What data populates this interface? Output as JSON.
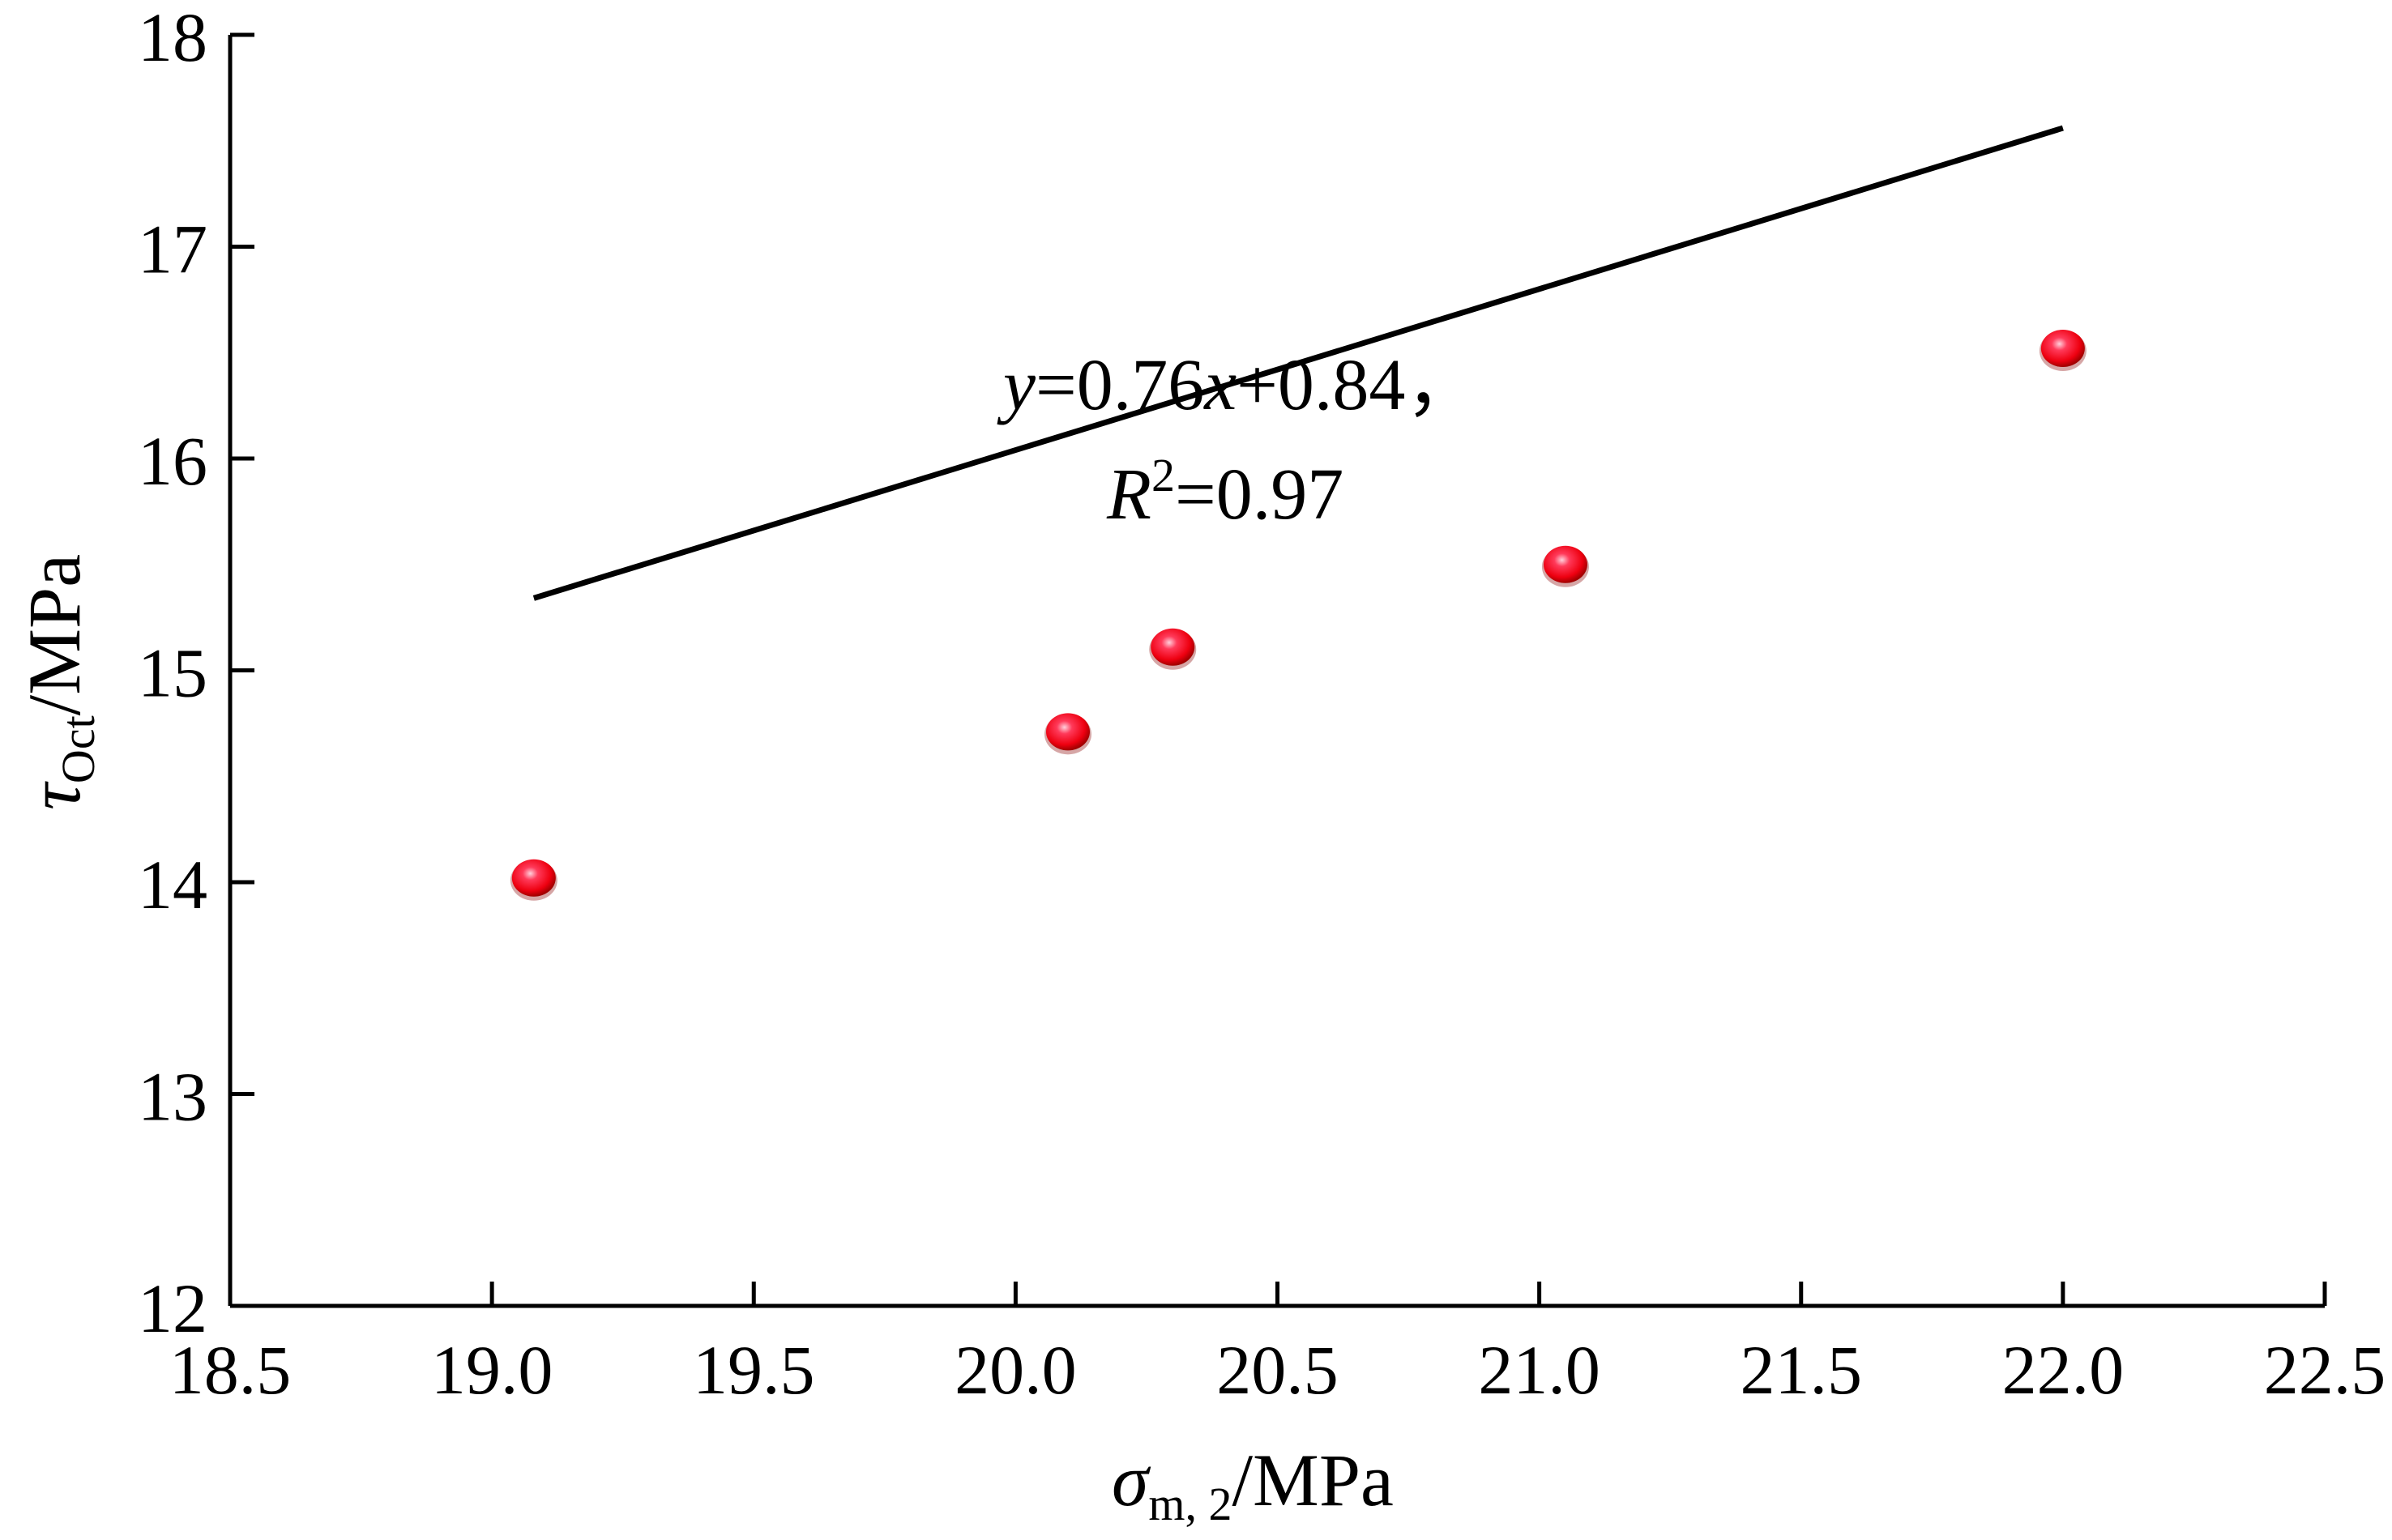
{
  "chart_data": {
    "type": "scatter",
    "title": "",
    "xlabel": {
      "symbol": "σ",
      "subscript": "m, 2",
      "unit": "/MPa"
    },
    "ylabel": {
      "symbol": "τ",
      "subscript": "Oct",
      "unit": "/MPa"
    },
    "xlim": [
      18.5,
      22.5
    ],
    "ylim": [
      12,
      18
    ],
    "x_ticks": [
      "18.5",
      "19.0",
      "19.5",
      "20.0",
      "20.5",
      "21.0",
      "21.5",
      "22.0",
      "22.5"
    ],
    "y_ticks": [
      "12",
      "13",
      "14",
      "15",
      "16",
      "17",
      "18"
    ],
    "series": [
      {
        "points": [
          {
            "x": 19.08,
            "y": 14.02
          },
          {
            "x": 20.1,
            "y": 14.71
          },
          {
            "x": 20.3,
            "y": 15.11
          },
          {
            "x": 21.05,
            "y": 15.5
          },
          {
            "x": 22.0,
            "y": 16.52
          }
        ],
        "marker_color": "#ff0000"
      }
    ],
    "fit": {
      "slope": 0.76,
      "intercept": 0.84,
      "x_range": [
        19.08,
        22.0
      ],
      "line_color": "#000000",
      "equation_parts": {
        "y": "y",
        "mid": "=0.76",
        "x": "x",
        "tail": "+0.84，"
      },
      "r2_parts": {
        "R": "R",
        "sup": "2",
        "tail": "=0.97"
      }
    },
    "grid": false,
    "legend": "none"
  }
}
